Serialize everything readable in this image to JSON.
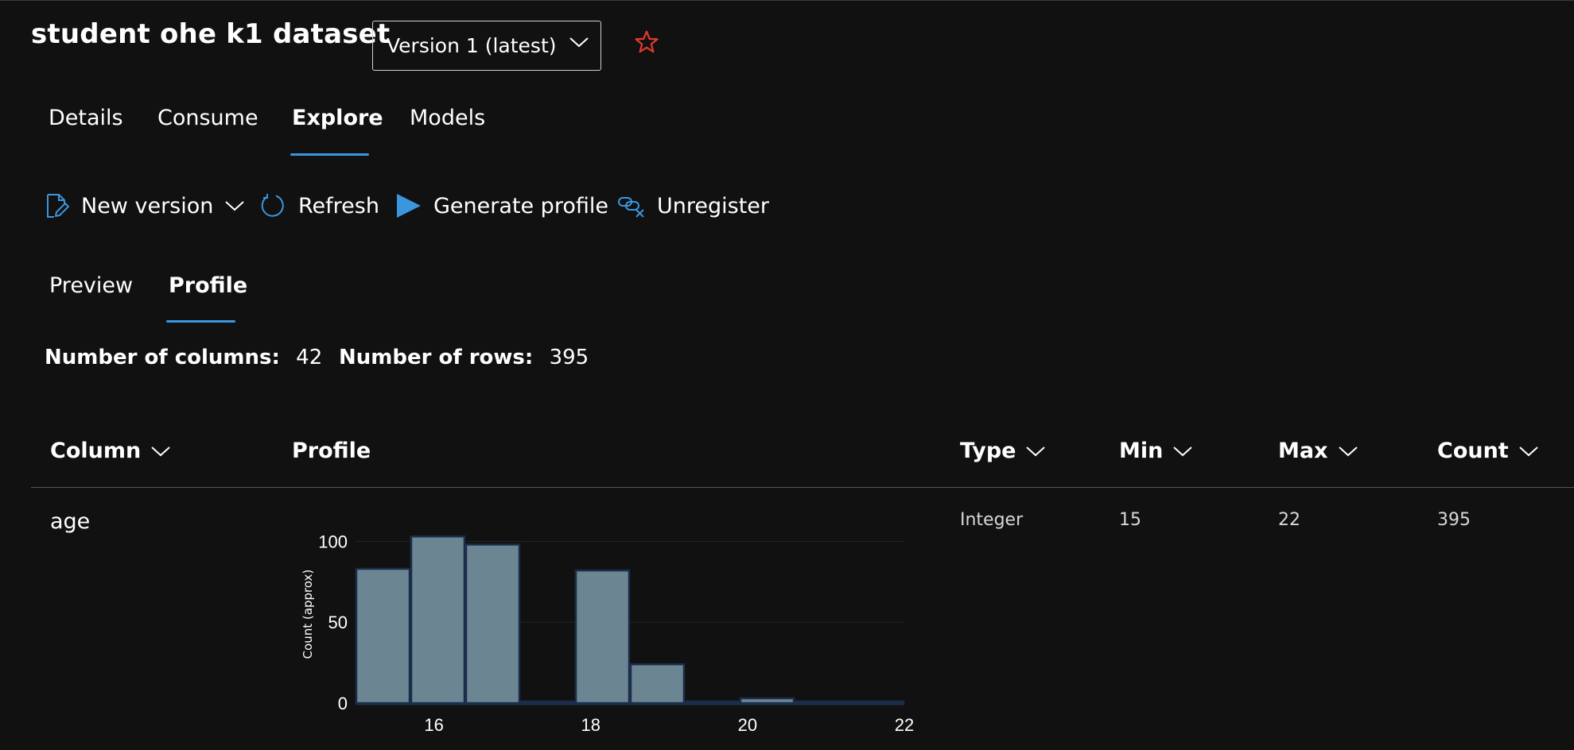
{
  "dataset": {
    "title": "student ohe k1 dataset",
    "version": "Version 1 (latest)"
  },
  "tabs": [
    {
      "label": "Details"
    },
    {
      "label": "Consume"
    },
    {
      "label": "Explore",
      "active": true
    },
    {
      "label": "Models"
    }
  ],
  "toolbar": {
    "new_version": "New version",
    "refresh": "Refresh",
    "generate_profile": "Generate profile",
    "unregister": "Unregister"
  },
  "subtabs": [
    {
      "label": "Preview"
    },
    {
      "label": "Profile",
      "active": true
    }
  ],
  "stats": {
    "columns_label": "Number of columns:",
    "columns_value": "42",
    "rows_label": "Number of rows:",
    "rows_value": "395"
  },
  "table": {
    "headers": {
      "column": "Column",
      "profile": "Profile",
      "type": "Type",
      "min": "Min",
      "max": "Max",
      "count": "Count"
    },
    "rows": [
      {
        "column": "age",
        "type": "Integer",
        "min": "15",
        "max": "22",
        "count": "395"
      }
    ]
  },
  "colors": {
    "accent": "#3a96dd",
    "star": "#e0392b",
    "bar_fill": "#6b8593",
    "bar_stroke": "#1c2d4a"
  },
  "chart_data": {
    "type": "bar",
    "title": "",
    "xlabel": "",
    "ylabel": "Count (approx)",
    "xlim": [
      15,
      22
    ],
    "ylim": [
      0,
      110
    ],
    "yticks": [
      0,
      50,
      100
    ],
    "xticks": [
      16,
      18,
      20,
      22
    ],
    "bins": [
      {
        "x0": 15.0,
        "x1": 15.7,
        "value": 83
      },
      {
        "x0": 15.7,
        "x1": 16.4,
        "value": 103
      },
      {
        "x0": 16.4,
        "x1": 17.1,
        "value": 98
      },
      {
        "x0": 17.1,
        "x1": 17.8,
        "value": 1
      },
      {
        "x0": 17.8,
        "x1": 18.5,
        "value": 82
      },
      {
        "x0": 18.5,
        "x1": 19.2,
        "value": 24
      },
      {
        "x0": 19.2,
        "x1": 19.9,
        "value": 0
      },
      {
        "x0": 19.9,
        "x1": 20.6,
        "value": 3
      },
      {
        "x0": 20.6,
        "x1": 21.3,
        "value": 0
      },
      {
        "x0": 21.3,
        "x1": 22.0,
        "value": 1
      }
    ]
  }
}
